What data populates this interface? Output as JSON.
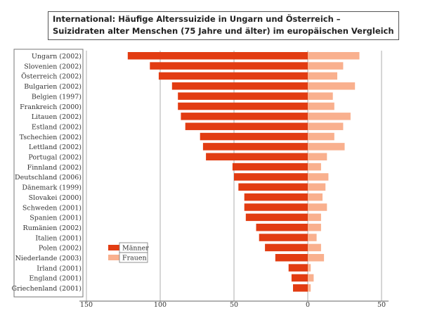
{
  "title": {
    "line1": "International: Häufige Alterssuizide in Ungarn und Österreich –",
    "line2": "Suizidraten alter Menschen (75 Jahre und älter) im europäischen Vergleich"
  },
  "colors": {
    "men": "#e23c12",
    "women": "#f9b08e",
    "frame": "#555555"
  },
  "chart_data": {
    "type": "bar",
    "orientation": "horizontal-diverging",
    "title": "Suizidraten alter Menschen (75 Jahre und älter) im europäischen Vergleich",
    "categories": [
      "Ungarn (2002)",
      "Slovenien (2002)",
      "Österreich (2002)",
      "Bulgarien (2002)",
      "Belgien (1997)",
      "Frankreich (2000)",
      "Litauen (2002)",
      "Estland (2002)",
      "Tschechien (2002)",
      "Lettland (2002)",
      "Portugal (2002)",
      "Finnland (2002)",
      "Deutschland (2006)",
      "Dänemark (1999)",
      "Slovakei (2000)",
      "Schweden (2001)",
      "Spanien (2001)",
      "Rumänien (2002)",
      "Italien (2001)",
      "Polen (2002)",
      "Niederlande (2003)",
      "Irland (2001)",
      "England (2001)",
      "Griechenland (2001)"
    ],
    "series": [
      {
        "name": "Männer",
        "direction": "left",
        "values": [
          122,
          107,
          101,
          92,
          88,
          88,
          86,
          83,
          73,
          71,
          69,
          51,
          50,
          47,
          43,
          43,
          42,
          35,
          33,
          29,
          22,
          13,
          11,
          10
        ]
      },
      {
        "name": "Frauen",
        "direction": "right",
        "values": [
          35,
          24,
          20,
          32,
          17,
          18,
          29,
          24,
          18,
          25,
          13,
          9,
          14,
          12,
          10,
          13,
          9,
          9,
          6,
          9,
          11,
          2,
          4,
          2
        ]
      }
    ],
    "xlim": [
      -150,
      50
    ],
    "xticks": [
      -150,
      -100,
      -50,
      0,
      50
    ],
    "xtick_labels": [
      "150",
      "100",
      "50",
      "0",
      "50"
    ],
    "xlabel": "",
    "ylabel": "",
    "grid": "vertical",
    "legend": {
      "position": "lower-left",
      "entries": [
        "Männer",
        "Frauen"
      ]
    }
  }
}
